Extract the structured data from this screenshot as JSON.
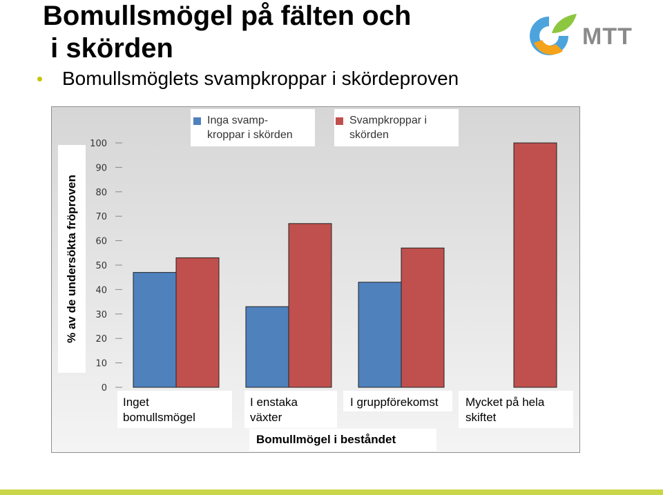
{
  "slide": {
    "title_line1": "Bomullsmögel på fälten och",
    "title_line2": " i skörden",
    "bullet": "Bomullsmöglets svampkroppar i skördeproven",
    "logo_text": "MTT"
  },
  "chart_data": {
    "type": "bar",
    "categories": [
      "Inget bomullsmögel",
      "I enstaka växter",
      "I gruppförekomst",
      "Mycket på hela skiftet"
    ],
    "series": [
      {
        "name": "Inga svamp-kroppar i skörden",
        "color": "#4f81bd",
        "values": [
          47,
          33,
          43,
          0
        ]
      },
      {
        "name": "Svampkroppar i skörden",
        "color": "#c0504d",
        "values": [
          53,
          67,
          57,
          100
        ]
      }
    ],
    "ylim": [
      0,
      100
    ],
    "yticks": [
      "0",
      "10",
      "20",
      "30",
      "40",
      "50",
      "60",
      "70",
      "80",
      "90",
      "100"
    ],
    "ylabel": "% av de undersökta fröproven",
    "xlabel": "Bomullmögel i beståndet",
    "legend": {
      "blue_line1": "Inga svamp-",
      "blue_line2": "kroppar i skörden",
      "red_line1": "Svampkroppar i",
      "red_line2": "skörden"
    },
    "category_labels": {
      "c1_line1": "Inget",
      "c1_line2": "bomullsmögel",
      "c2_line1": "I enstaka",
      "c2_line2": "växter",
      "c3_line1": "I gruppförekomst",
      "c4_line1": "Mycket på hela",
      "c4_line2": "skiftet"
    },
    "grid": false,
    "legend_position": "top"
  },
  "colors": {
    "accent_bullet": "#c8c400",
    "bottom_bar": "#c9d64a",
    "logo_green": "#8dc63f",
    "logo_orange": "#f5a31a",
    "logo_blue": "#3a9ad9",
    "logo_text": "#8a8a8a"
  }
}
